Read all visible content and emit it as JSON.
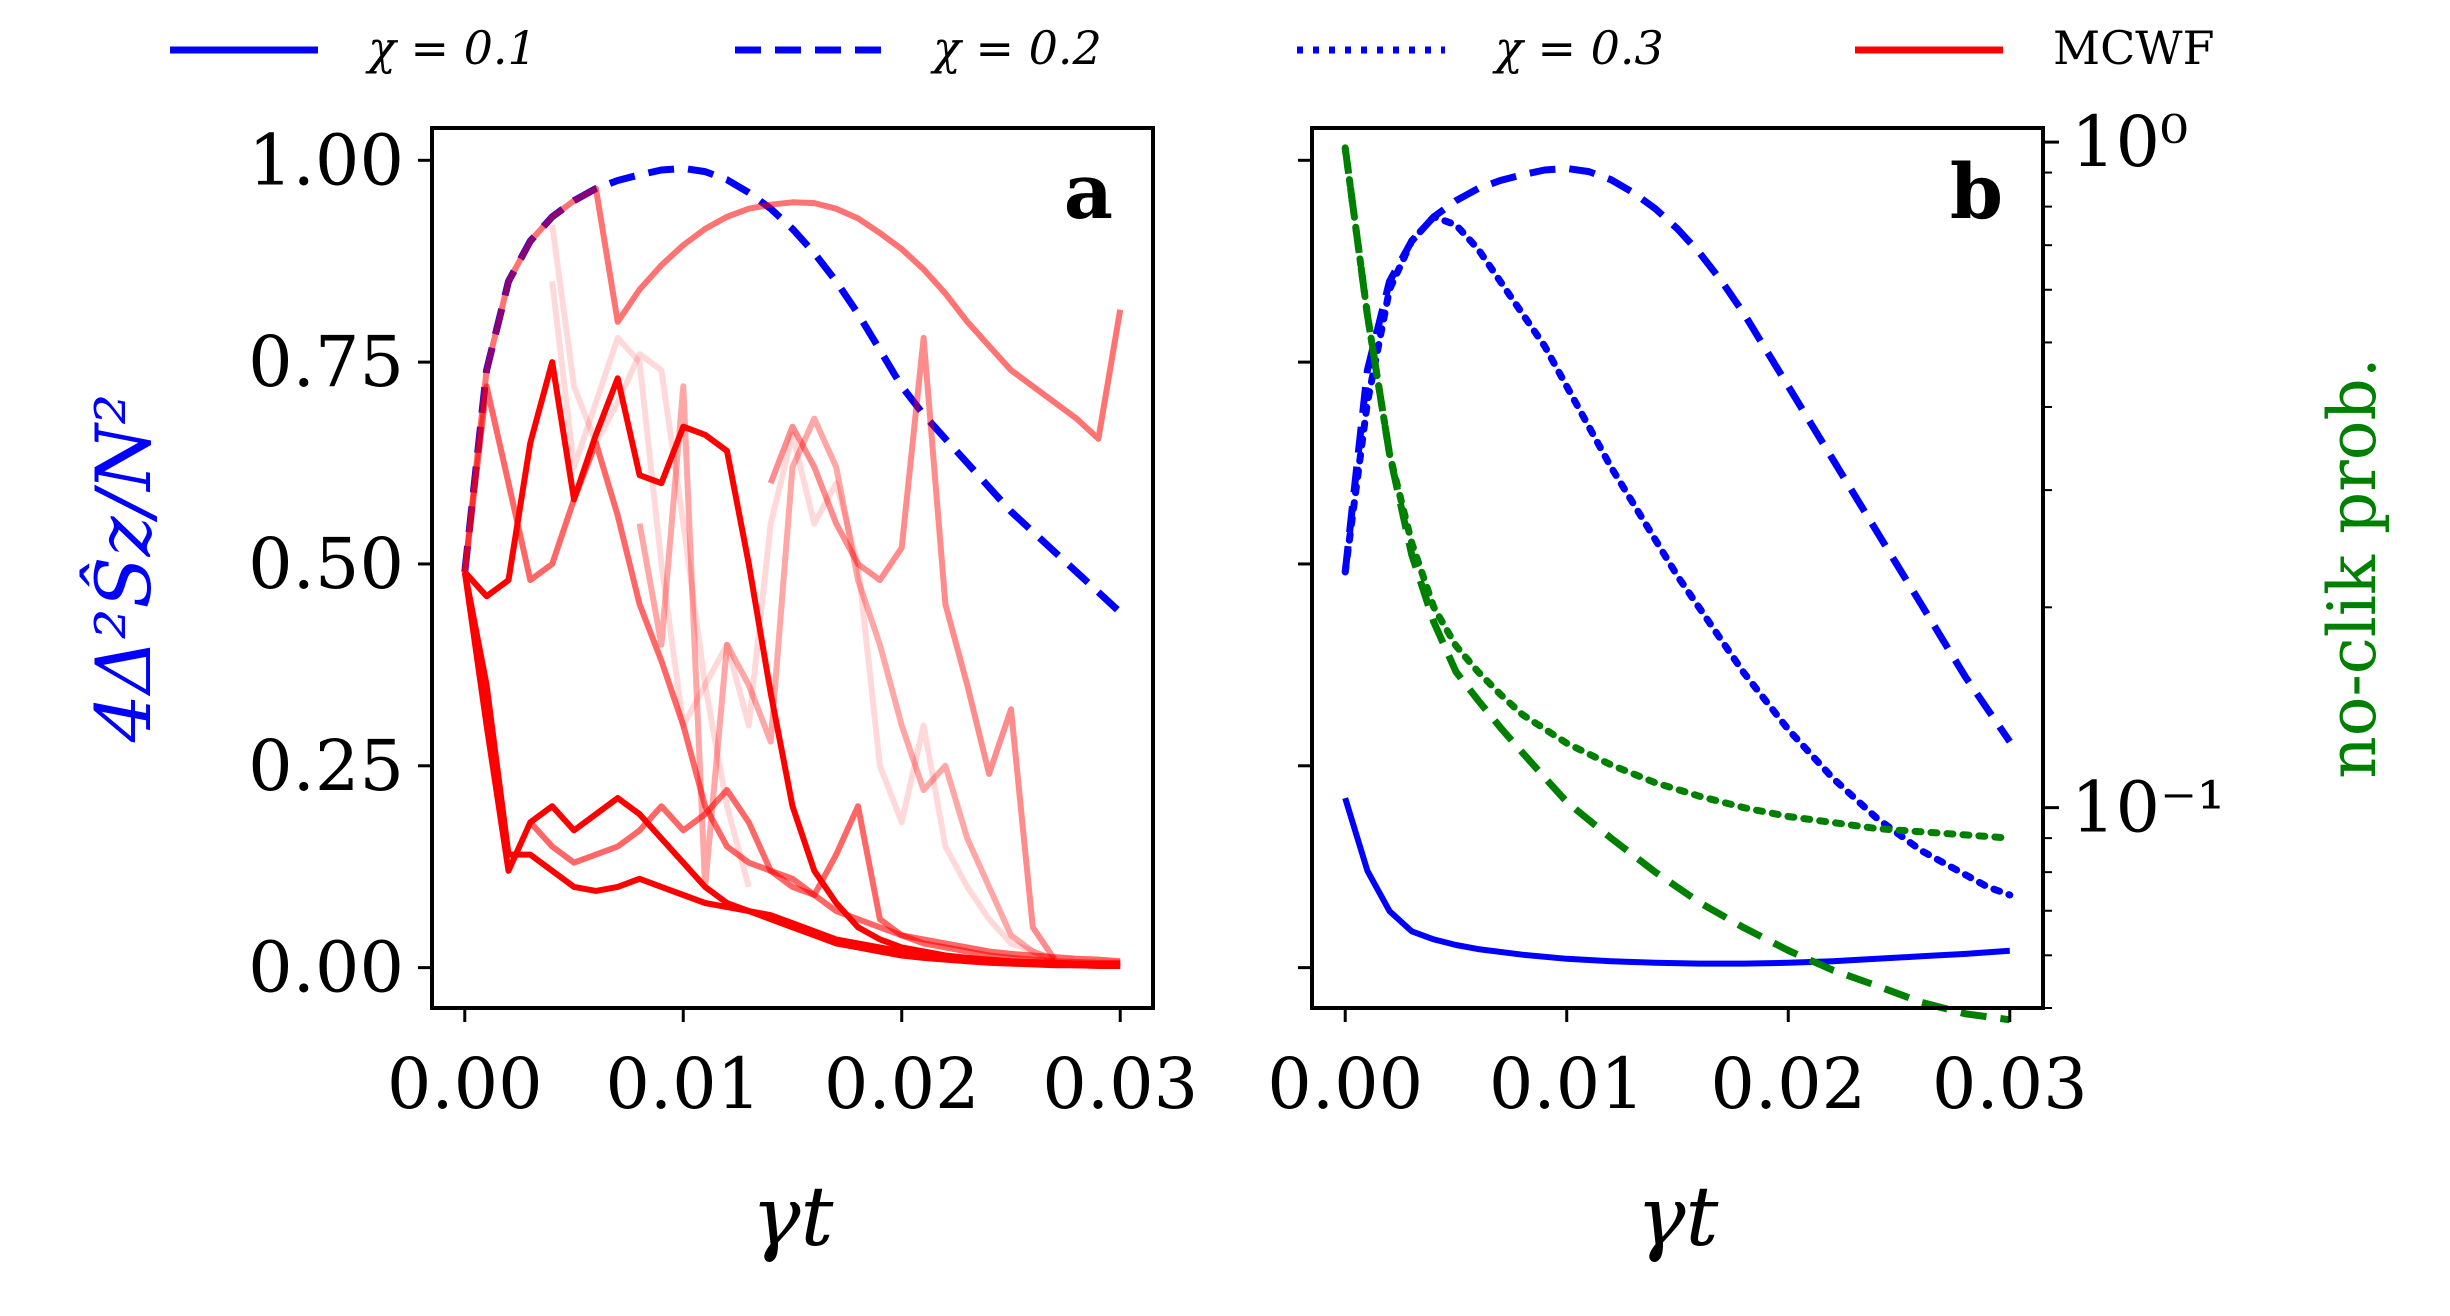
{
  "legend": [
    {
      "label": "χ = 0.1",
      "color": "#0000ff",
      "dash": "solid"
    },
    {
      "label": "χ = 0.2",
      "color": "#0000ff",
      "dash": "dashed"
    },
    {
      "label": "χ = 0.3",
      "color": "#0000ff",
      "dash": "dotted"
    },
    {
      "label": "MCWF",
      "color": "#ff0000",
      "dash": "solid"
    }
  ],
  "colors": {
    "blue": "#0000ff",
    "red": "#ff0000",
    "green": "#008000",
    "axis": "#000000"
  },
  "chart_data": [
    {
      "type": "line",
      "panel_label": "a",
      "xlabel": "γt",
      "ylabel": "4Δ²Ŝz/N²",
      "xlim": [
        -0.0015,
        0.0315
      ],
      "ylim": [
        -0.05,
        1.04
      ],
      "xticks": [
        0.0,
        0.01,
        0.02,
        0.03
      ],
      "xtick_labels": [
        "0.00",
        "0.01",
        "0.02",
        "0.03"
      ],
      "yticks": [
        0.0,
        0.25,
        0.5,
        0.75,
        1.0
      ],
      "ytick_labels": [
        "0.00",
        "0.25",
        "0.50",
        "0.75",
        "1.00"
      ],
      "series": [
        {
          "name": "χ = 0.2",
          "style": "dashed",
          "color": "#0000ff",
          "x": [
            0,
            0.001,
            0.002,
            0.003,
            0.004,
            0.005,
            0.006,
            0.007,
            0.008,
            0.009,
            0.01,
            0.011,
            0.012,
            0.013,
            0.014,
            0.015,
            0.016,
            0.017,
            0.018,
            0.019,
            0.02,
            0.021,
            0.022,
            0.023,
            0.024,
            0.025,
            0.026,
            0.027,
            0.028,
            0.029,
            0.03
          ],
          "y": [
            0.49,
            0.74,
            0.85,
            0.9,
            0.93,
            0.95,
            0.965,
            0.975,
            0.982,
            0.988,
            0.99,
            0.986,
            0.976,
            0.96,
            0.94,
            0.915,
            0.885,
            0.85,
            0.81,
            0.765,
            0.72,
            0.685,
            0.655,
            0.625,
            0.595,
            0.565,
            0.54,
            0.515,
            0.49,
            0.465,
            0.44
          ]
        },
        {
          "name": "MCWF trajectory 1",
          "style": "solid",
          "color": "#ff0000",
          "opacity": 0.55,
          "x": [
            0,
            0.001,
            0.002,
            0.003,
            0.004,
            0.005,
            0.006,
            0.007,
            0.008,
            0.009,
            0.01,
            0.011,
            0.012,
            0.013,
            0.014,
            0.015,
            0.016,
            0.017,
            0.018,
            0.019,
            0.02,
            0.021,
            0.022,
            0.023,
            0.024,
            0.025,
            0.026,
            0.027,
            0.028,
            0.029,
            0.03
          ],
          "y": [
            0.49,
            0.74,
            0.85,
            0.9,
            0.93,
            0.95,
            0.965,
            0.8,
            0.84,
            0.87,
            0.895,
            0.915,
            0.93,
            0.94,
            0.945,
            0.948,
            0.947,
            0.94,
            0.928,
            0.91,
            0.89,
            0.865,
            0.835,
            0.8,
            0.77,
            0.74,
            0.72,
            0.7,
            0.68,
            0.655,
            0.815
          ]
        },
        {
          "name": "MCWF trajectory 2",
          "style": "solid",
          "color": "#ff0000",
          "opacity": 0.15,
          "x": [
            0.004,
            0.005,
            0.006,
            0.007,
            0.008,
            0.009,
            0.01,
            0.011,
            0.012,
            0.013
          ],
          "y": [
            0.92,
            0.72,
            0.65,
            0.7,
            0.76,
            0.74,
            0.55,
            0.35,
            0.2,
            0.1
          ]
        },
        {
          "name": "MCWF trajectory 3",
          "style": "solid",
          "color": "#ff0000",
          "opacity": 0.15,
          "x": [
            0.004,
            0.005,
            0.006,
            0.007,
            0.008,
            0.009,
            0.01,
            0.011,
            0.012,
            0.013,
            0.014,
            0.015,
            0.016,
            0.017,
            0.018,
            0.019,
            0.02,
            0.021,
            0.022,
            0.023,
            0.024,
            0.025,
            0.026,
            0.027
          ],
          "y": [
            0.85,
            0.62,
            0.7,
            0.78,
            0.75,
            0.5,
            0.3,
            0.35,
            0.4,
            0.3,
            0.55,
            0.66,
            0.55,
            0.6,
            0.5,
            0.25,
            0.18,
            0.3,
            0.15,
            0.1,
            0.06,
            0.03,
            0.02,
            0.01
          ]
        },
        {
          "name": "MCWF trajectory 4",
          "style": "solid",
          "color": "#ff0000",
          "opacity": 0.35,
          "x": [
            0.008,
            0.009,
            0.01,
            0.011,
            0.012,
            0.013,
            0.014,
            0.015,
            0.016,
            0.017,
            0.018,
            0.019,
            0.02,
            0.021,
            0.022,
            0.023,
            0.024,
            0.025,
            0.026,
            0.027
          ],
          "y": [
            0.55,
            0.4,
            0.72,
            0.1,
            0.4,
            0.35,
            0.28,
            0.62,
            0.68,
            0.62,
            0.48,
            0.4,
            0.3,
            0.22,
            0.25,
            0.16,
            0.1,
            0.04,
            0.02,
            0.01
          ]
        },
        {
          "name": "MCWF trajectory 5",
          "style": "solid",
          "color": "#ff0000",
          "opacity": 0.45,
          "x": [
            0.014,
            0.015,
            0.016,
            0.017,
            0.018,
            0.019,
            0.02,
            0.021,
            0.022,
            0.023,
            0.024,
            0.025,
            0.026,
            0.027
          ],
          "y": [
            0.6,
            0.67,
            0.62,
            0.55,
            0.5,
            0.48,
            0.52,
            0.78,
            0.45,
            0.35,
            0.24,
            0.32,
            0.05,
            0.01
          ]
        },
        {
          "name": "MCWF trajectory 6",
          "style": "solid",
          "color": "#ff0000",
          "opacity": 0.6,
          "x": [
            0,
            0.001,
            0.002,
            0.003,
            0.004,
            0.005,
            0.006,
            0.007,
            0.008,
            0.009,
            0.01,
            0.011,
            0.012,
            0.013,
            0.014,
            0.015,
            0.016,
            0.017,
            0.018,
            0.019,
            0.02,
            0.021,
            0.022,
            0.023,
            0.024,
            0.025,
            0.026,
            0.027,
            0.028,
            0.029,
            0.03
          ],
          "y": [
            0.49,
            0.72,
            0.6,
            0.48,
            0.5,
            0.58,
            0.65,
            0.56,
            0.45,
            0.38,
            0.3,
            0.2,
            0.15,
            0.13,
            0.12,
            0.11,
            0.09,
            0.07,
            0.06,
            0.05,
            0.04,
            0.035,
            0.03,
            0.025,
            0.02,
            0.017,
            0.015,
            0.013,
            0.011,
            0.01,
            0.008
          ]
        },
        {
          "name": "MCWF trajectory 7",
          "style": "solid",
          "color": "#ff0000",
          "opacity": 1.0,
          "x": [
            0,
            0.001,
            0.002,
            0.003,
            0.004,
            0.005,
            0.006,
            0.007,
            0.008,
            0.009,
            0.01,
            0.011,
            0.012,
            0.013,
            0.014,
            0.015,
            0.016,
            0.017,
            0.018,
            0.019,
            0.02,
            0.021,
            0.022,
            0.023,
            0.024,
            0.025,
            0.026,
            0.027,
            0.028,
            0.029,
            0.03
          ],
          "y": [
            0.49,
            0.46,
            0.48,
            0.65,
            0.75,
            0.58,
            0.66,
            0.73,
            0.61,
            0.6,
            0.67,
            0.66,
            0.64,
            0.5,
            0.34,
            0.2,
            0.12,
            0.08,
            0.05,
            0.035,
            0.025,
            0.02,
            0.015,
            0.012,
            0.01,
            0.008,
            0.007,
            0.006,
            0.005,
            0.005,
            0.005
          ]
        },
        {
          "name": "MCWF trajectory 8",
          "style": "solid",
          "color": "#ff0000",
          "opacity": 1.0,
          "x": [
            0,
            0.001,
            0.002,
            0.003,
            0.004,
            0.005,
            0.006,
            0.007,
            0.008,
            0.009,
            0.01,
            0.011,
            0.012,
            0.013,
            0.014,
            0.015,
            0.016,
            0.017,
            0.018,
            0.019,
            0.02,
            0.021,
            0.022,
            0.023,
            0.024,
            0.025,
            0.026,
            0.027,
            0.028,
            0.029,
            0.03
          ],
          "y": [
            0.49,
            0.3,
            0.12,
            0.18,
            0.2,
            0.17,
            0.19,
            0.21,
            0.19,
            0.16,
            0.13,
            0.1,
            0.08,
            0.07,
            0.06,
            0.05,
            0.04,
            0.03,
            0.025,
            0.02,
            0.015,
            0.012,
            0.01,
            0.008,
            0.006,
            0.005,
            0.004,
            0.003,
            0.003,
            0.002,
            0.002
          ]
        },
        {
          "name": "MCWF trajectory 9",
          "style": "solid",
          "color": "#ff0000",
          "opacity": 1.0,
          "x": [
            0,
            0.001,
            0.002,
            0.003,
            0.004,
            0.005,
            0.006,
            0.007,
            0.008,
            0.009,
            0.01,
            0.011,
            0.012,
            0.013,
            0.014,
            0.015,
            0.016,
            0.017,
            0.018,
            0.019,
            0.02,
            0.021,
            0.022,
            0.023,
            0.024,
            0.025,
            0.026,
            0.027,
            0.028,
            0.029,
            0.03
          ],
          "y": [
            0.49,
            0.35,
            0.14,
            0.14,
            0.12,
            0.1,
            0.095,
            0.1,
            0.11,
            0.1,
            0.09,
            0.08,
            0.075,
            0.07,
            0.065,
            0.055,
            0.045,
            0.035,
            0.03,
            0.025,
            0.02,
            0.015,
            0.012,
            0.01,
            0.008,
            0.006,
            0.005,
            0.004,
            0.003,
            0.003,
            0.002
          ]
        },
        {
          "name": "MCWF trajectory 10",
          "style": "solid",
          "color": "#ff0000",
          "opacity": 0.6,
          "x": [
            0.003,
            0.004,
            0.005,
            0.006,
            0.007,
            0.008,
            0.009,
            0.01,
            0.011,
            0.012,
            0.013,
            0.014,
            0.015,
            0.016,
            0.017,
            0.018,
            0.019,
            0.02,
            0.021,
            0.022,
            0.023,
            0.024,
            0.025,
            0.026,
            0.027,
            0.028,
            0.029,
            0.03
          ],
          "y": [
            0.18,
            0.15,
            0.13,
            0.14,
            0.15,
            0.17,
            0.2,
            0.17,
            0.19,
            0.22,
            0.18,
            0.12,
            0.1,
            0.09,
            0.14,
            0.2,
            0.06,
            0.04,
            0.03,
            0.025,
            0.02,
            0.015,
            0.012,
            0.01,
            0.008,
            0.007,
            0.006,
            0.006
          ]
        }
      ]
    },
    {
      "type": "line",
      "panel_label": "b",
      "xlabel": "γt",
      "ylabel_right": "no-clik prob.",
      "xlim": [
        -0.0015,
        0.0315
      ],
      "ylim": [
        -0.05,
        1.04
      ],
      "yscale_right": "log",
      "ylim_right": [
        0.05,
        1.05
      ],
      "xticks": [
        0.0,
        0.01,
        0.02,
        0.03
      ],
      "xtick_labels": [
        "0.00",
        "0.01",
        "0.02",
        "0.03"
      ],
      "yticks_right": [
        0.1,
        1.0
      ],
      "ytick_labels_right": [
        "10⁻¹",
        "10⁰"
      ],
      "series": [
        {
          "name": "χ = 0.1 (variance)",
          "axis": "left",
          "style": "solid",
          "color": "#0000ff",
          "x": [
            0,
            0.001,
            0.002,
            0.003,
            0.004,
            0.005,
            0.006,
            0.008,
            0.01,
            0.012,
            0.014,
            0.016,
            0.018,
            0.02,
            0.022,
            0.024,
            0.026,
            0.028,
            0.03
          ],
          "y": [
            0.21,
            0.12,
            0.07,
            0.045,
            0.035,
            0.028,
            0.023,
            0.016,
            0.011,
            0.008,
            0.006,
            0.005,
            0.005,
            0.006,
            0.008,
            0.011,
            0.014,
            0.017,
            0.021
          ]
        },
        {
          "name": "χ = 0.2 (variance)",
          "axis": "left",
          "style": "dashed",
          "color": "#0000ff",
          "x": [
            0,
            0.001,
            0.002,
            0.003,
            0.004,
            0.005,
            0.006,
            0.007,
            0.008,
            0.009,
            0.01,
            0.011,
            0.012,
            0.013,
            0.014,
            0.015,
            0.016,
            0.017,
            0.018,
            0.019,
            0.02,
            0.021,
            0.022,
            0.023,
            0.024,
            0.025,
            0.026,
            0.027,
            0.028,
            0.029,
            0.03
          ],
          "y": [
            0.49,
            0.74,
            0.85,
            0.9,
            0.93,
            0.95,
            0.965,
            0.975,
            0.982,
            0.988,
            0.99,
            0.986,
            0.976,
            0.96,
            0.94,
            0.915,
            0.885,
            0.85,
            0.81,
            0.765,
            0.72,
            0.675,
            0.63,
            0.585,
            0.54,
            0.495,
            0.45,
            0.405,
            0.36,
            0.32,
            0.28
          ]
        },
        {
          "name": "χ = 0.3 (variance)",
          "axis": "left",
          "style": "dotted",
          "color": "#0000ff",
          "x": [
            0,
            0.001,
            0.002,
            0.003,
            0.004,
            0.005,
            0.006,
            0.007,
            0.008,
            0.009,
            0.01,
            0.011,
            0.012,
            0.013,
            0.014,
            0.015,
            0.016,
            0.017,
            0.018,
            0.019,
            0.02,
            0.021,
            0.022,
            0.023,
            0.024,
            0.025,
            0.026,
            0.027,
            0.028,
            0.029,
            0.03
          ],
          "y": [
            0.49,
            0.7,
            0.84,
            0.9,
            0.93,
            0.92,
            0.89,
            0.85,
            0.81,
            0.77,
            0.72,
            0.67,
            0.62,
            0.575,
            0.53,
            0.485,
            0.445,
            0.405,
            0.365,
            0.33,
            0.295,
            0.265,
            0.235,
            0.21,
            0.185,
            0.165,
            0.145,
            0.13,
            0.115,
            0.1,
            0.09
          ]
        },
        {
          "name": "χ = 0.2 (no-click prob.)",
          "axis": "right",
          "style": "dashed",
          "color": "#008000",
          "x": [
            0,
            0.001,
            0.002,
            0.003,
            0.004,
            0.005,
            0.006,
            0.007,
            0.008,
            0.009,
            0.01,
            0.012,
            0.014,
            0.016,
            0.018,
            0.02,
            0.022,
            0.024,
            0.026,
            0.028,
            0.03
          ],
          "y": [
            0.98,
            0.55,
            0.34,
            0.24,
            0.19,
            0.16,
            0.145,
            0.132,
            0.121,
            0.111,
            0.102,
            0.09,
            0.08,
            0.072,
            0.066,
            0.061,
            0.057,
            0.054,
            0.051,
            0.049,
            0.048
          ]
        },
        {
          "name": "χ = 0.3 (no-click prob.)",
          "axis": "right",
          "style": "dotted",
          "color": "#008000",
          "x": [
            0,
            0.001,
            0.002,
            0.003,
            0.004,
            0.005,
            0.006,
            0.007,
            0.008,
            0.01,
            0.012,
            0.014,
            0.016,
            0.018,
            0.02,
            0.022,
            0.024,
            0.026,
            0.028,
            0.03
          ],
          "y": [
            0.98,
            0.55,
            0.34,
            0.25,
            0.2,
            0.175,
            0.16,
            0.148,
            0.138,
            0.125,
            0.116,
            0.109,
            0.104,
            0.1,
            0.097,
            0.095,
            0.093,
            0.092,
            0.091,
            0.09
          ]
        }
      ]
    }
  ]
}
